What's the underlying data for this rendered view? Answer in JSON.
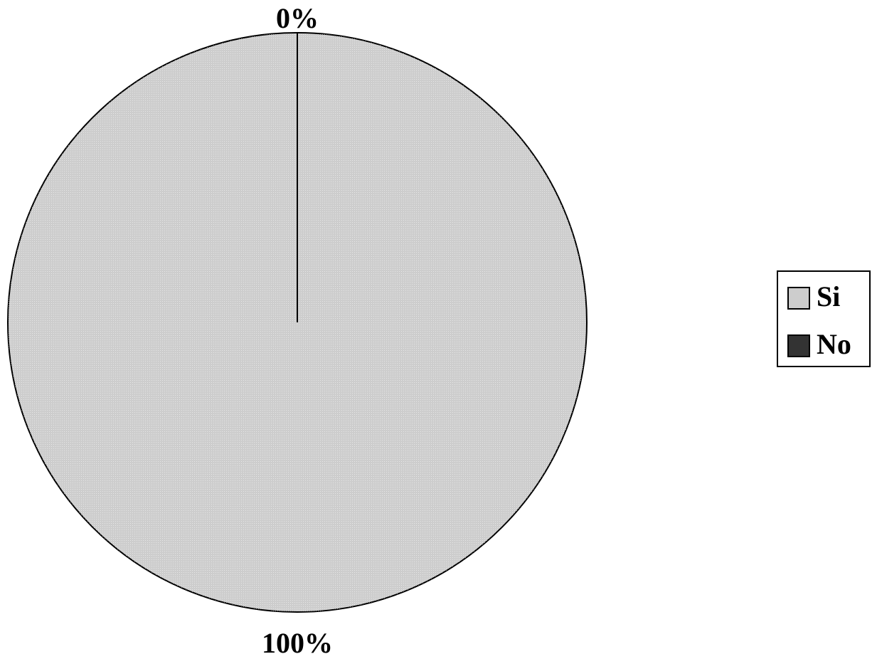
{
  "chart_data": {
    "type": "pie",
    "categories": [
      "Si",
      "No"
    ],
    "values": [
      100,
      0
    ],
    "value_labels": [
      "100%",
      "0%"
    ],
    "colors": [
      "#cdcdcd",
      "#333333"
    ],
    "legend": "right"
  }
}
